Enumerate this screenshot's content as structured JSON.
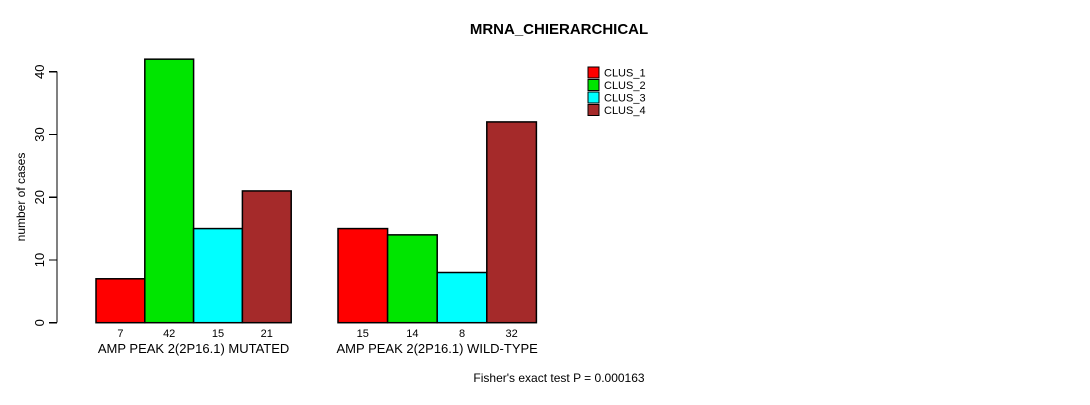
{
  "title": "MRNA_CHIERARCHICAL",
  "chart_data": {
    "type": "bar",
    "title": "MRNA_CHIERARCHICAL",
    "xlabel": "",
    "ylabel": "number of cases",
    "ylim": [
      0,
      42
    ],
    "yticks": [
      0,
      10,
      20,
      30,
      40
    ],
    "grid": false,
    "legend_position": "top-right",
    "series": [
      {
        "name": "CLUS_1",
        "color": "#FF0000"
      },
      {
        "name": "CLUS_2",
        "color": "#00E500"
      },
      {
        "name": "CLUS_3",
        "color": "#00FFFF"
      },
      {
        "name": "CLUS_4",
        "color": "#A52A2A"
      }
    ],
    "groups": [
      {
        "label": "AMP PEAK 2(2P16.1) MUTATED",
        "values": [
          7,
          42,
          15,
          21
        ]
      },
      {
        "label": "AMP PEAK 2(2P16.1) WILD-TYPE",
        "values": [
          15,
          14,
          8,
          32
        ]
      }
    ],
    "bar_value_labels_shown": true,
    "annotation": "Fisher's exact test P = 0.000163"
  }
}
